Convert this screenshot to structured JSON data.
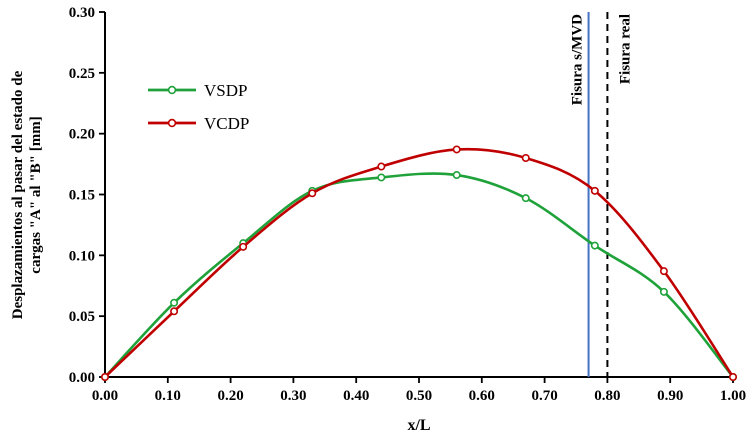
{
  "chart_data": {
    "type": "line",
    "title": "",
    "xlabel": "x/L",
    "ylabel_lines": [
      "Desplazamientos al pasar del estado de",
      "cargas \"A\" al \"B\" [mm]"
    ],
    "xlim": [
      0.0,
      1.0
    ],
    "ylim": [
      0.0,
      0.3
    ],
    "x_ticks": [
      "0.00",
      "0.10",
      "0.20",
      "0.30",
      "0.40",
      "0.50",
      "0.60",
      "0.70",
      "0.80",
      "0.90",
      "1.00"
    ],
    "y_ticks": [
      "0.00",
      "0.05",
      "0.10",
      "0.15",
      "0.20",
      "0.25",
      "0.30"
    ],
    "grid": false,
    "legend_position": "upper-left",
    "series": [
      {
        "name": "VSDP",
        "color": "#1fa23a",
        "x": [
          0.0,
          0.11,
          0.22,
          0.33,
          0.44,
          0.56,
          0.67,
          0.78,
          0.89,
          1.0
        ],
        "y": [
          0.0,
          0.061,
          0.11,
          0.153,
          0.164,
          0.166,
          0.147,
          0.108,
          0.07,
          0.0
        ]
      },
      {
        "name": "VCDP",
        "color": "#c00000",
        "x": [
          0.0,
          0.11,
          0.22,
          0.33,
          0.44,
          0.56,
          0.67,
          0.78,
          0.89,
          1.0
        ],
        "y": [
          0.0,
          0.054,
          0.107,
          0.151,
          0.173,
          0.187,
          0.18,
          0.153,
          0.087,
          0.0
        ]
      }
    ],
    "annotations": [
      {
        "label": "Fisura s/MVD",
        "x": 0.77,
        "style": "solid",
        "color": "#4472c4"
      },
      {
        "label": "Fisura real",
        "x": 0.8,
        "style": "dashed",
        "color": "#000000"
      }
    ]
  }
}
